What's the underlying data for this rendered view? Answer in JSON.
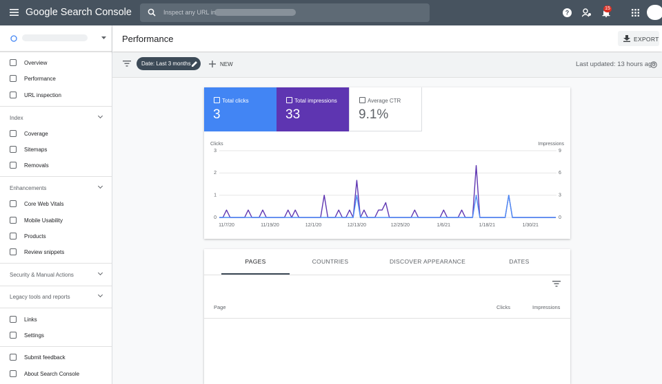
{
  "header": {
    "brand": "Google Search Console",
    "search_placeholder": "Inspect any URL in",
    "notifications": "15"
  },
  "sidebar": {
    "nav": [
      "Overview",
      "Performance",
      "URL inspection"
    ],
    "index": {
      "title": "Index",
      "items": [
        "Coverage",
        "Sitemaps",
        "Removals"
      ]
    },
    "enhancements": {
      "title": "Enhancements",
      "items": [
        "Core Web Vitals",
        "Mobile Usability",
        "Products",
        "Review snippets"
      ]
    },
    "security": "Security & Manual Actions",
    "legacy": "Legacy tools and reports",
    "more": [
      "Links",
      "Settings"
    ],
    "footer": [
      "Submit feedback",
      "About Search Console"
    ]
  },
  "page": {
    "title": "Performance",
    "export": "EXPORT",
    "filter_chip": "Date: Last 3 months",
    "new": "NEW",
    "last_updated": "Last updated: 13 hours ago"
  },
  "metrics": [
    {
      "label": "Total clicks",
      "value": "3"
    },
    {
      "label": "Total impressions",
      "value": "33"
    },
    {
      "label": "Average CTR",
      "value": "9.1%"
    }
  ],
  "chart_data": {
    "type": "line",
    "ylabel": "Clicks",
    "y2label": "Impressions",
    "categories": [
      null,
      null,
      "11/7/20",
      null,
      null,
      null,
      null,
      null,
      null,
      null,
      null,
      null,
      null,
      null,
      "11/19/20",
      null,
      null,
      null,
      null,
      null,
      null,
      null,
      null,
      null,
      null,
      null,
      "12/1/20",
      null,
      null,
      null,
      null,
      null,
      null,
      null,
      null,
      null,
      null,
      null,
      "12/13/20",
      null,
      null,
      null,
      null,
      null,
      null,
      null,
      null,
      null,
      null,
      null,
      "12/25/20",
      null,
      null,
      null,
      null,
      null,
      null,
      null,
      null,
      null,
      null,
      null,
      "1/6/21",
      null,
      null,
      null,
      null,
      null,
      null,
      null,
      null,
      null,
      null,
      null,
      "1/18/21",
      null,
      null,
      null,
      null,
      null,
      null,
      null,
      null,
      null,
      null,
      null,
      "1/30/21",
      null,
      null,
      null,
      null,
      null,
      null,
      null
    ],
    "series": [
      {
        "color": "#4f8ef7",
        "values": [
          0,
          0,
          0,
          0,
          0,
          0,
          0,
          0,
          0,
          0,
          0,
          0,
          0,
          0,
          0,
          0,
          0,
          0,
          0,
          0,
          0,
          0,
          0,
          0,
          0,
          0,
          0,
          0,
          0,
          0,
          0,
          0,
          0,
          0,
          0,
          0,
          0,
          0,
          1,
          0,
          0,
          0,
          0,
          0,
          0,
          0,
          0,
          0,
          0,
          0,
          0,
          0,
          0,
          0,
          0,
          0,
          0,
          0,
          0,
          0,
          0,
          0,
          0,
          0,
          0,
          0,
          0,
          0,
          0,
          0,
          0,
          1,
          0,
          0,
          0,
          0,
          0,
          0,
          0,
          0,
          1,
          0,
          0,
          0,
          0,
          0,
          0,
          0,
          0,
          0,
          0,
          0,
          0,
          0
        ]
      },
      {
        "color": "#5e35b1",
        "axis": "y2",
        "values": [
          0,
          0,
          1,
          0,
          0,
          0,
          0,
          0,
          1,
          0,
          0,
          0,
          1,
          0,
          0,
          0,
          0,
          0,
          0,
          1,
          0,
          1,
          0,
          0,
          0,
          0,
          0,
          0,
          0,
          3,
          0,
          0,
          0,
          1,
          0,
          0,
          1,
          0,
          5,
          0,
          1,
          0,
          0,
          0,
          1,
          1,
          2,
          0,
          0,
          0,
          0,
          0,
          0,
          0,
          1,
          0,
          0,
          0,
          0,
          0,
          0,
          0,
          1,
          0,
          0,
          0,
          0,
          1,
          0,
          0,
          0,
          7,
          0,
          0,
          0,
          0,
          0,
          0,
          0,
          0,
          3,
          0,
          0,
          0,
          0,
          0,
          0,
          0,
          0,
          0,
          0,
          0,
          0,
          0
        ]
      }
    ],
    "ylim": [
      0,
      3
    ],
    "yticks": [
      0,
      1,
      2,
      3
    ],
    "y2lim": [
      0,
      9
    ],
    "y2ticks": [
      0,
      3,
      6,
      9
    ],
    "grid": true
  },
  "tabs": [
    "PAGES",
    "COUNTRIES",
    "DISCOVER APPEARANCE",
    "DATES"
  ],
  "table": {
    "columns": [
      "Page",
      "Clicks",
      "Impressions"
    ]
  }
}
